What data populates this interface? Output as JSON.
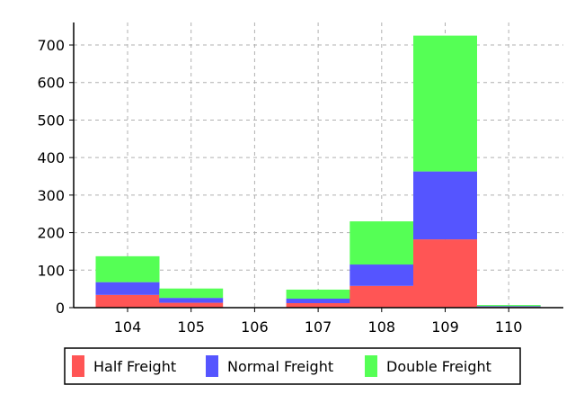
{
  "chart_data": {
    "type": "bar",
    "stacked": true,
    "categories": [
      "104",
      "105",
      "106",
      "107",
      "108",
      "109",
      "110"
    ],
    "series": [
      {
        "name": "Half Freight",
        "color": "#ff5555",
        "values": [
          34,
          13,
          0,
          12,
          58,
          182,
          2
        ]
      },
      {
        "name": "Normal Freight",
        "color": "#5555ff",
        "values": [
          34,
          13,
          0,
          12,
          57,
          181,
          2
        ]
      },
      {
        "name": "Double Freight",
        "color": "#55ff55",
        "values": [
          69,
          25,
          0,
          24,
          115,
          362,
          3
        ]
      }
    ],
    "y_ticks": [
      "0",
      "100",
      "200",
      "300",
      "400",
      "500",
      "600",
      "700"
    ],
    "ylim": [
      0,
      760
    ],
    "grid": true,
    "legend_position": "bottom-center"
  }
}
